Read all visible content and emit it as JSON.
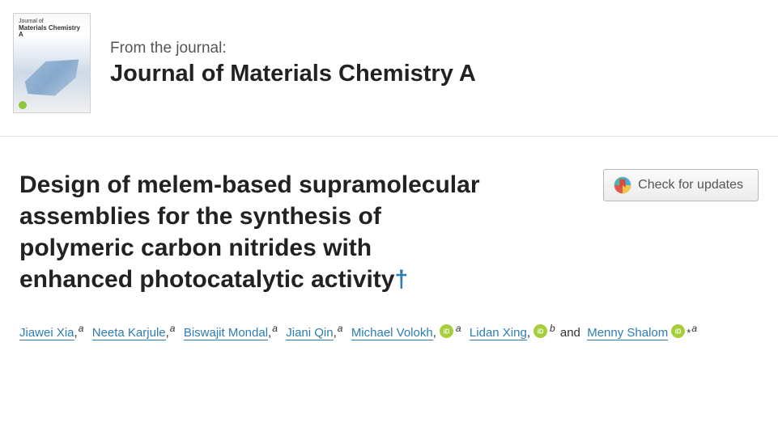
{
  "journal": {
    "from_label": "From the journal:",
    "name": "Journal of Materials Chemistry A",
    "cover_caption_small": "Journal of",
    "cover_caption_main": "Materials Chemistry A"
  },
  "article": {
    "title": "Design of melem-based supramolecular assemblies for the synthesis of polymeric carbon nitrides with enhanced photocatalytic activity",
    "title_dagger": "†"
  },
  "check_updates": {
    "label": "Check for updates"
  },
  "authors": [
    {
      "name": "Jiawei Xia",
      "affil": "a",
      "orcid": false,
      "corr": false
    },
    {
      "name": "Neeta Karjule",
      "affil": "a",
      "orcid": false,
      "corr": false
    },
    {
      "name": "Biswajit Mondal",
      "affil": "a",
      "orcid": false,
      "corr": false
    },
    {
      "name": "Jiani Qin",
      "affil": "a",
      "orcid": false,
      "corr": false
    },
    {
      "name": "Michael Volokh",
      "affil": "a",
      "orcid": true,
      "corr": false
    },
    {
      "name": "Lidan Xing",
      "affil": "b",
      "orcid": true,
      "corr": false
    },
    {
      "name": "Menny Shalom",
      "affil": "a",
      "orcid": true,
      "corr": true
    }
  ],
  "colors": {
    "link": "#2e7db2",
    "orcid": "#a6ce39",
    "text": "#333333",
    "border": "#e0e0e0"
  }
}
